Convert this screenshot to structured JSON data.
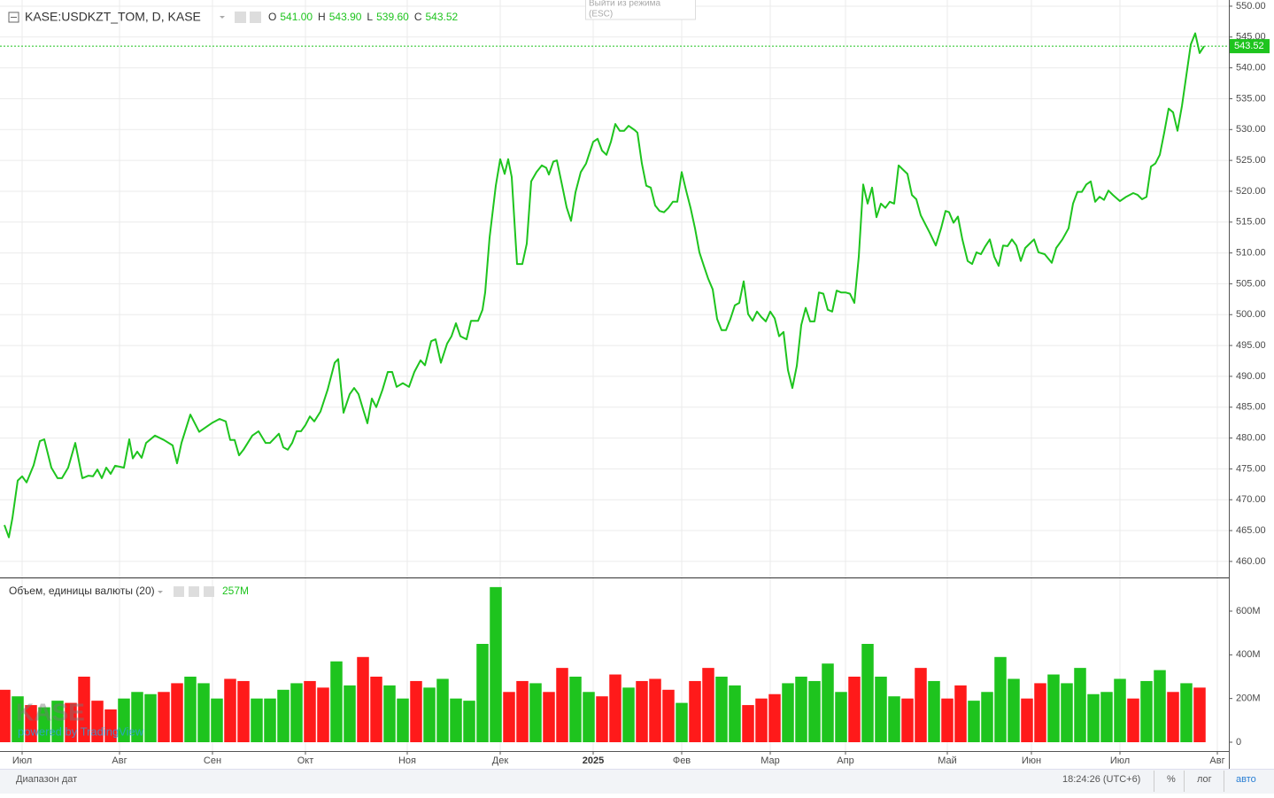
{
  "chart_data": [
    {
      "type": "line",
      "title": "KASE:USDKZT_TOM, D, KASE",
      "ohlc": [
        {
          "key": "O",
          "value": "541.00"
        },
        {
          "key": "H",
          "value": "543.90"
        },
        {
          "key": "L",
          "value": "539.60"
        },
        {
          "key": "C",
          "value": "543.52"
        }
      ],
      "color": "#1ec41e",
      "last_price": 543.52,
      "x": [
        0,
        1,
        1.8,
        3,
        4,
        5,
        6.6,
        8,
        9,
        10.6,
        12,
        13,
        14.4,
        16,
        17.6,
        19,
        20,
        21,
        22,
        23,
        24,
        25,
        27,
        28.2,
        29,
        30,
        31,
        32,
        34,
        36,
        38,
        39,
        40,
        42,
        44,
        47,
        48.6,
        50,
        51,
        52,
        53,
        54,
        56,
        57.4,
        59,
        60,
        62,
        63,
        64,
        65,
        66,
        67,
        68,
        69,
        70,
        71.4,
        73,
        74.6,
        75.4,
        76.6,
        78,
        79,
        80,
        81,
        82,
        83,
        84,
        85.4,
        86.6,
        87.6,
        88.6,
        90,
        91.4,
        92.6,
        94,
        95,
        96.4,
        97.4,
        98.6,
        100,
        101,
        102,
        103,
        104.4,
        105.4,
        107,
        108,
        108.6,
        109.6,
        111,
        112,
        113,
        113.8,
        114.6,
        115.8,
        117,
        118,
        119,
        120.2,
        121.4,
        122.4,
        123,
        124,
        124.8,
        126,
        127,
        128,
        129,
        130.2,
        131.4,
        133,
        134,
        135,
        136,
        137,
        138,
        139,
        140,
        141,
        142.4,
        143,
        144,
        145,
        146,
        147,
        148,
        149,
        150,
        151,
        152,
        153,
        154,
        155,
        156,
        157,
        158,
        159,
        160,
        161,
        162,
        163,
        164,
        165,
        166,
        167,
        168,
        169,
        170,
        171,
        172,
        173,
        174,
        175,
        176,
        177,
        178,
        179,
        180,
        181,
        182,
        183,
        184,
        185,
        186,
        187,
        188,
        189,
        190,
        191,
        192,
        193,
        194,
        195,
        196,
        197,
        198,
        199,
        200,
        201,
        202,
        203,
        204,
        205,
        206,
        207,
        209,
        210.4,
        211.6,
        212.6,
        213.4,
        214.4,
        215.4,
        216.4,
        217.6,
        218.6,
        219.6,
        220.6,
        221.6,
        222.6,
        223.6,
        224.6,
        225.6,
        226.6,
        227.6,
        228.6,
        229.6,
        230.6,
        231.6,
        232.6,
        233.6,
        235,
        236.6,
        237.6,
        239,
        240.4,
        241.4,
        242.4,
        243.4,
        244.4,
        245.4,
        246.4,
        247.4,
        248.4,
        249.4,
        250.4,
        252,
        253.4,
        255,
        256,
        257,
        258,
        259,
        260,
        261,
        262,
        263,
        264,
        265,
        266,
        267,
        268,
        269,
        270,
        271
      ],
      "values": [
        465.9,
        463.9,
        467.0,
        473.1,
        473.8,
        472.8,
        475.6,
        479.5,
        479.8,
        475.2,
        473.5,
        473.5,
        475.2,
        479.2,
        473.5,
        473.9,
        473.8,
        474.9,
        473.5,
        475.2,
        474.2,
        475.5,
        475.2,
        479.8,
        476.7,
        477.8,
        476.8,
        479.2,
        480.4,
        479.7,
        478.8,
        475.9,
        479.2,
        483.8,
        481.0,
        482.5,
        483.1,
        482.7,
        479.7,
        479.7,
        477.2,
        478.1,
        480.4,
        481.1,
        479.2,
        479.2,
        480.7,
        478.5,
        478.1,
        479.2,
        481.1,
        481.1,
        482.1,
        483.5,
        482.7,
        484.3,
        487.8,
        492.2,
        492.8,
        484.1,
        487.1,
        488.1,
        487.1,
        484.7,
        482.4,
        486.4,
        485.0,
        487.8,
        490.7,
        490.7,
        488.3,
        488.9,
        488.3,
        490.7,
        492.6,
        491.8,
        495.7,
        496.0,
        492.2,
        495.3,
        496.5,
        498.6,
        496.5,
        496.0,
        499.0,
        499.0,
        500.8,
        503.6,
        512.5,
        520.9,
        525.2,
        522.8,
        525.2,
        522.3,
        508.2,
        508.2,
        511.5,
        521.6,
        523.1,
        524.2,
        523.8,
        522.7,
        524.8,
        525.0,
        520.9,
        517.4,
        515.2,
        519.8,
        523.1,
        524.5,
        528.0,
        528.5,
        526.6,
        525.9,
        528.0,
        530.9,
        529.8,
        529.8,
        530.6,
        529.9,
        529.5,
        524.5,
        520.9,
        520.6,
        517.7,
        516.8,
        516.6,
        517.3,
        518.3,
        518.3,
        523.1,
        520.1,
        517.3,
        514.0,
        510.1,
        507.9,
        505.8,
        504.1,
        499.3,
        497.5,
        497.5,
        499.3,
        501.5,
        501.9,
        505.4,
        500.1,
        499.0,
        500.5,
        499.6,
        498.9,
        500.5,
        499.4,
        496.5,
        497.2,
        491.0,
        488.1,
        491.7,
        498.3,
        501.1,
        498.9,
        498.9,
        503.6,
        503.4,
        500.8,
        500.5,
        503.9,
        503.6,
        503.6,
        503.4,
        501.9,
        509.4,
        521.1,
        518.0,
        520.6,
        515.8,
        518.0,
        517.3,
        518.3,
        518.0,
        524.2,
        523.5,
        522.8,
        519.4,
        518.7,
        516.1,
        513.3,
        511.2,
        514.0,
        516.8,
        516.6,
        514.9,
        515.9,
        512.2,
        508.7,
        508.2,
        510.1,
        509.8,
        511.1,
        512.2,
        509.4,
        507.9,
        511.2,
        511.1,
        512.2,
        511.2,
        508.7,
        510.8,
        511.5,
        512.2,
        510.1,
        509.8,
        508.4,
        510.8,
        512.2,
        514.0,
        518.0,
        519.9,
        519.9,
        521.1,
        521.6,
        518.3,
        519.1,
        518.6,
        520.1,
        519.4,
        518.4,
        519.1,
        519.7,
        519.4,
        518.7,
        519.1,
        524.0,
        524.5,
        525.9,
        529.5,
        533.4,
        532.8,
        529.8,
        533.8,
        538.8,
        543.8,
        545.6,
        542.4,
        543.5
      ],
      "xlim": [
        0,
        276.6
      ],
      "xticks": [
        {
          "value": 4,
          "label": "Июл"
        },
        {
          "value": 26,
          "label": "Авг"
        },
        {
          "value": 47,
          "label": "Сен"
        },
        {
          "value": 68,
          "label": "Окт"
        },
        {
          "value": 91,
          "label": "Ноя"
        },
        {
          "value": 112,
          "label": "Дек"
        },
        {
          "value": 133,
          "label": "2025"
        },
        {
          "value": 153,
          "label": "Фев"
        },
        {
          "value": 173,
          "label": "Мар"
        },
        {
          "value": 190,
          "label": "Апр"
        },
        {
          "value": 213,
          "label": "Май"
        },
        {
          "value": 232,
          "label": "Июн"
        },
        {
          "value": 252,
          "label": "Июл"
        },
        {
          "value": 274,
          "label": "Авг"
        }
      ],
      "ylim": [
        457.4,
        551.0
      ],
      "yticks": [
        {
          "value": 460,
          "label": "460.00"
        },
        {
          "value": 465,
          "label": "465.00"
        },
        {
          "value": 470,
          "label": "470.00"
        },
        {
          "value": 475,
          "label": "475.00"
        },
        {
          "value": 480,
          "label": "480.00"
        },
        {
          "value": 485,
          "label": "485.00"
        },
        {
          "value": 490,
          "label": "490.00"
        },
        {
          "value": 495,
          "label": "495.00"
        },
        {
          "value": 500,
          "label": "500.00"
        },
        {
          "value": 505,
          "label": "505.00"
        },
        {
          "value": 510,
          "label": "510.00"
        },
        {
          "value": 515,
          "label": "515.00"
        },
        {
          "value": 520,
          "label": "520.00"
        },
        {
          "value": 525,
          "label": "525.00"
        },
        {
          "value": 530,
          "label": "530.00"
        },
        {
          "value": 535,
          "label": "535.00"
        },
        {
          "value": 540,
          "label": "540.00"
        },
        {
          "value": 545,
          "label": "545.00"
        },
        {
          "value": 550,
          "label": "550.00"
        }
      ],
      "grid": true
    },
    {
      "type": "bar",
      "title": "Объем, единицы валюты (20)",
      "last_value": {
        "value": 257,
        "label": "257M"
      },
      "up_color": "#1ec41e",
      "down_color": "#ff1a1a",
      "x": [
        0,
        3,
        6,
        9,
        12,
        15,
        18,
        21,
        24,
        27,
        30,
        33,
        36,
        39,
        42,
        45,
        48,
        51,
        54,
        57,
        60,
        63,
        66,
        69,
        72,
        75,
        78,
        81,
        84,
        87,
        90,
        93,
        96,
        99,
        102,
        105,
        108,
        111,
        114,
        117,
        120,
        123,
        126,
        129,
        132,
        135,
        138,
        141,
        144,
        147,
        150,
        153,
        156,
        159,
        162,
        165,
        168,
        171,
        174,
        177,
        180,
        183,
        186,
        189,
        192,
        195,
        198,
        201,
        204,
        207,
        210,
        213,
        216,
        219,
        222,
        225,
        228,
        231,
        234,
        237,
        240,
        243,
        246,
        249,
        252,
        255,
        258,
        261,
        264,
        267,
        270
      ],
      "values": [
        240,
        210,
        170,
        160,
        190,
        180,
        300,
        190,
        150,
        200,
        230,
        220,
        230,
        270,
        300,
        270,
        200,
        290,
        280,
        200,
        200,
        240,
        270,
        280,
        250,
        370,
        260,
        390,
        300,
        260,
        200,
        280,
        250,
        290,
        200,
        190,
        450,
        710,
        230,
        280,
        270,
        230,
        340,
        300,
        230,
        210,
        310,
        250,
        280,
        290,
        240,
        180,
        280,
        340,
        300,
        260,
        170,
        200,
        220,
        270,
        300,
        280,
        360,
        230,
        300,
        450,
        300,
        210,
        200,
        340,
        280,
        200,
        260,
        190,
        230,
        390,
        290,
        200,
        270,
        310,
        270,
        340,
        220,
        230,
        290,
        200,
        280,
        330,
        230,
        270,
        250
      ],
      "direction": [
        "down",
        "up",
        "down",
        "up",
        "up",
        "down",
        "down",
        "down",
        "down",
        "up",
        "up",
        "up",
        "down",
        "down",
        "up",
        "up",
        "up",
        "down",
        "down",
        "up",
        "up",
        "up",
        "up",
        "down",
        "down",
        "up",
        "up",
        "down",
        "down",
        "up",
        "up",
        "down",
        "up",
        "up",
        "up",
        "up",
        "up",
        "up",
        "down",
        "down",
        "up",
        "down",
        "down",
        "up",
        "up",
        "down",
        "down",
        "up",
        "down",
        "down",
        "down",
        "up",
        "down",
        "down",
        "up",
        "up",
        "down",
        "down",
        "down",
        "up",
        "up",
        "up",
        "up",
        "up",
        "down",
        "up",
        "up",
        "up",
        "down",
        "down",
        "up",
        "down",
        "down",
        "up",
        "up",
        "up",
        "up",
        "down",
        "down",
        "up",
        "up",
        "up",
        "up",
        "up",
        "up",
        "down",
        "up",
        "up",
        "down",
        "up",
        "down"
      ],
      "xlim": [
        0,
        276.6
      ],
      "ylim": [
        -40.5,
        750
      ],
      "yticks": [
        0,
        {
          "value": 200,
          "label": "200M"
        },
        {
          "value": 400,
          "label": "400M"
        },
        {
          "value": 600,
          "label": "600M"
        }
      ]
    }
  ],
  "ui": {
    "exit_hint": [
      "Выйти из режима",
      "(ESC)"
    ],
    "watermark": "KASE",
    "powered": "powered by TradingView",
    "date_range": "Диапазон дат",
    "clock": "18:24:26 (UTC+6)",
    "percent": "%",
    "log": "лог",
    "auto": "авто"
  }
}
